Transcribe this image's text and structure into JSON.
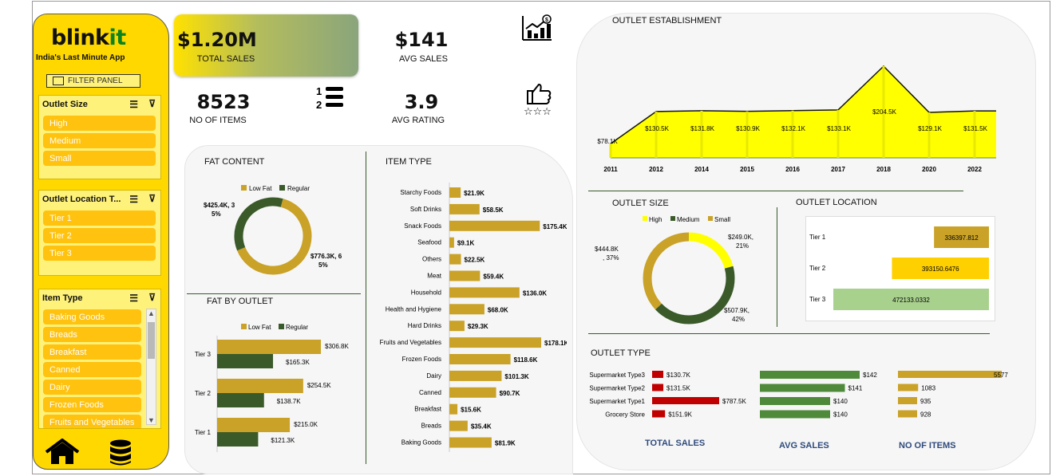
{
  "sidebar": {
    "logo_main": "blink",
    "logo_accent": "it",
    "tagline": "India's Last Minute App",
    "filter_panel": "FILTER PANEL",
    "slicers": [
      {
        "title": "Outlet Size",
        "items": [
          "High",
          "Medium",
          "Small"
        ]
      },
      {
        "title": "Outlet Location T...",
        "items": [
          "Tier 1",
          "Tier 2",
          "Tier 3"
        ]
      },
      {
        "title": "Item Type",
        "items": [
          "Baking Goods",
          "Breads",
          "Breakfast",
          "Canned",
          "Dairy",
          "Frozen Foods",
          "Fruits and Vegetables"
        ]
      }
    ]
  },
  "kpis": {
    "total_sales": {
      "value": "$1.20M",
      "label": "TOTAL SALES"
    },
    "avg_sales": {
      "value": "$141",
      "label": "AVG SALES"
    },
    "items": {
      "value": "8523",
      "label": "NO OF ITEMS"
    },
    "avg_rating": {
      "value": "3.9",
      "label": "AVG RATING"
    }
  },
  "colors": {
    "gold": "#c9a227",
    "dark_green": "#3a5a2a",
    "yellow": "#ffff00",
    "sidebar": "#ffd800",
    "red": "#c00000",
    "green": "#4f8a3a",
    "light_green": "#a9d18e"
  },
  "chart_data": [
    {
      "id": "fat_content",
      "type": "pie",
      "title": "FAT  CONTENT",
      "categories": [
        "Low Fat",
        "Regular"
      ],
      "values": [
        776.3,
        425.4
      ],
      "data_labels": [
        "$776.3K, 6\n5%",
        "$425.4K, 3\n5%"
      ],
      "legend": "top"
    },
    {
      "id": "fat_by_outlet",
      "type": "bar",
      "title": "FAT BY OUTLET",
      "categories": [
        "Tier 1",
        "Tier 2",
        "Tier 3"
      ],
      "series": [
        {
          "name": "Low Fat",
          "values": [
            215.0,
            254.5,
            306.8
          ],
          "labels": [
            "$215.0K",
            "$254.5K",
            "$306.8K"
          ]
        },
        {
          "name": "Regular",
          "values": [
            121.3,
            138.7,
            165.3
          ],
          "labels": [
            "$121.3K",
            "$138.7K",
            "$165.3K"
          ]
        }
      ],
      "legend": "top"
    },
    {
      "id": "item_type",
      "type": "bar",
      "title": "ITEM TYPE",
      "categories": [
        "Starchy Foods",
        "Soft Drinks",
        "Snack Foods",
        "Seafood",
        "Others",
        "Meat",
        "Household",
        "Health and Hygiene",
        "Hard Drinks",
        "Fruits and Vegetables",
        "Frozen Foods",
        "Dairy",
        "Canned",
        "Breakfast",
        "Breads",
        "Baking Goods"
      ],
      "values": [
        21.9,
        58.5,
        175.4,
        9.1,
        22.5,
        59.4,
        136.0,
        68.0,
        29.3,
        178.1,
        118.6,
        101.3,
        90.7,
        15.6,
        35.4,
        81.9
      ],
      "labels": [
        "$21.9K",
        "$58.5K",
        "$175.4K",
        "$9.1K",
        "$22.5K",
        "$59.4K",
        "$136.0K",
        "$68.0K",
        "$29.3K",
        "$178.1K",
        "$118.6K",
        "$101.3K",
        "$90.7K",
        "$15.6K",
        "$35.4K",
        "$81.9K"
      ]
    },
    {
      "id": "outlet_establishment",
      "type": "area",
      "title": "OUTLET ESTABLISHMENT",
      "x": [
        "2011",
        "2012",
        "2014",
        "2015",
        "2016",
        "2017",
        "2018",
        "2020",
        "2022"
      ],
      "values": [
        78.1,
        130.5,
        131.8,
        130.9,
        132.1,
        133.1,
        204.5,
        129.1,
        131.5
      ],
      "labels": [
        "$78.1K",
        "$130.5K",
        "$131.8K",
        "$130.9K",
        "$132.1K",
        "$133.1K",
        "$204.5K",
        "$129.1K",
        "$131.5K"
      ]
    },
    {
      "id": "outlet_size",
      "type": "pie",
      "title": "OUTLET SIZE",
      "categories": [
        "High",
        "Medium",
        "Small"
      ],
      "values": [
        249.0,
        507.9,
        444.8
      ],
      "data_labels": [
        "$249.0K,\n21%",
        "$507.9K,\n42%",
        "$444.8K\n, 37%"
      ],
      "legend": "top"
    },
    {
      "id": "outlet_location",
      "type": "bar",
      "title": "OUTLET LOCATION",
      "categories": [
        "Tier 1",
        "Tier 2",
        "Tier 3"
      ],
      "values": [
        336397.812,
        393150.6476,
        472133.0332
      ],
      "labels": [
        "336397.812",
        "393150.6476",
        "472133.0332"
      ]
    },
    {
      "id": "outlet_type",
      "type": "bar",
      "title": "OUTLET TYPE",
      "categories": [
        "Supermarket Type3",
        "Supermarket Type2",
        "Supermarket Type1",
        "Grocery Store"
      ],
      "series": [
        {
          "name": "TOTAL SALES",
          "values": [
            130.7,
            131.5,
            787.5,
            151.9
          ],
          "labels": [
            "$130.7K",
            "$131.5K",
            "$787.5K",
            "$151.9K"
          ]
        },
        {
          "name": "AVG SALES",
          "values": [
            142,
            141,
            140,
            140
          ],
          "labels": [
            "$142",
            "$141",
            "$140",
            "$140"
          ]
        },
        {
          "name": "NO OF ITEMS",
          "values": [
            5577,
            1083,
            935,
            928
          ],
          "labels": [
            "5577",
            "1083",
            "935",
            "928"
          ]
        }
      ]
    }
  ]
}
